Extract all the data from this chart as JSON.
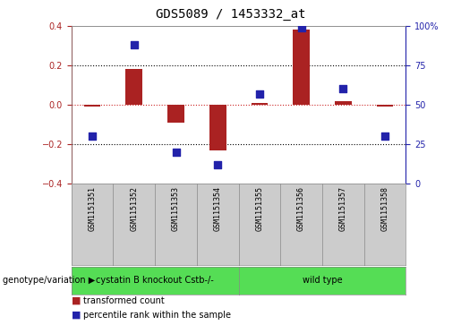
{
  "title": "GDS5089 / 1453332_at",
  "samples": [
    "GSM1151351",
    "GSM1151352",
    "GSM1151353",
    "GSM1151354",
    "GSM1151355",
    "GSM1151356",
    "GSM1151357",
    "GSM1151358"
  ],
  "transformed_count": [
    -0.01,
    0.18,
    -0.09,
    -0.23,
    0.01,
    0.38,
    0.02,
    -0.01
  ],
  "percentile_rank": [
    30,
    88,
    20,
    12,
    57,
    99,
    60,
    30
  ],
  "groups": [
    {
      "label": "cystatin B knockout Cstb-/-",
      "indices": [
        0,
        1,
        2,
        3
      ],
      "color": "#55dd55"
    },
    {
      "label": "wild type",
      "indices": [
        4,
        5,
        6,
        7
      ],
      "color": "#55dd55"
    }
  ],
  "group_row_label": "genotype/variation",
  "ylim_left": [
    -0.4,
    0.4
  ],
  "ylim_right": [
    0,
    100
  ],
  "yticks_left": [
    -0.4,
    -0.2,
    0.0,
    0.2,
    0.4
  ],
  "yticks_right": [
    0,
    25,
    50,
    75,
    100
  ],
  "yticklabels_right": [
    "0",
    "25",
    "50",
    "75",
    "100%"
  ],
  "bar_color": "#aa2222",
  "dot_color": "#2222aa",
  "legend_bar_label": "transformed count",
  "legend_dot_label": "percentile rank within the sample",
  "plot_bg": "#ffffff",
  "sample_box_bg": "#cccccc",
  "bar_width": 0.4,
  "dot_size": 30,
  "zero_line_color": "#cc2222",
  "grid_color": "#000000",
  "title_fontsize": 10,
  "tick_fontsize": 7,
  "sample_fontsize": 6,
  "legend_fontsize": 7,
  "group_fontsize": 7
}
